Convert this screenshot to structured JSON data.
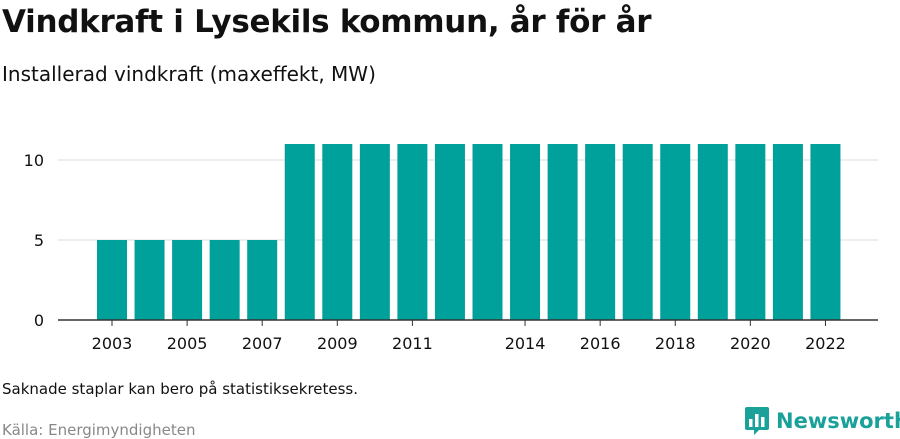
{
  "title": "Vindkraft i Lysekils kommun, år för år",
  "subtitle": "Installerad vindkraft (maxeffekt, MW)",
  "footnote": "Saknade staplar kan bero på statistiksekretess.",
  "source": "Källa: Energimyndigheten",
  "brand": {
    "name": "Newsworthy",
    "color": "#1aa19a",
    "icon": "bar-chart-speech-bubble-icon"
  },
  "chart_data": {
    "type": "bar",
    "categories": [
      "2003",
      "2004",
      "2005",
      "2006",
      "2007",
      "2008",
      "2009",
      "2010",
      "2011",
      "2012",
      "2013",
      "2014",
      "2015",
      "2016",
      "2017",
      "2018",
      "2019",
      "2020",
      "2021",
      "2022"
    ],
    "values": [
      5,
      5,
      5,
      5,
      5,
      11,
      11,
      11,
      11,
      11,
      11,
      11,
      11,
      11,
      11,
      11,
      11,
      11,
      11,
      11
    ],
    "x_tick_labels": [
      "2003",
      "2005",
      "2007",
      "2009",
      "2011",
      "2014",
      "2016",
      "2018",
      "2020",
      "2022"
    ],
    "y_ticks": [
      0,
      5,
      10
    ],
    "ylim": [
      0,
      12
    ],
    "bar_color": "#00a19a",
    "grid": true
  }
}
